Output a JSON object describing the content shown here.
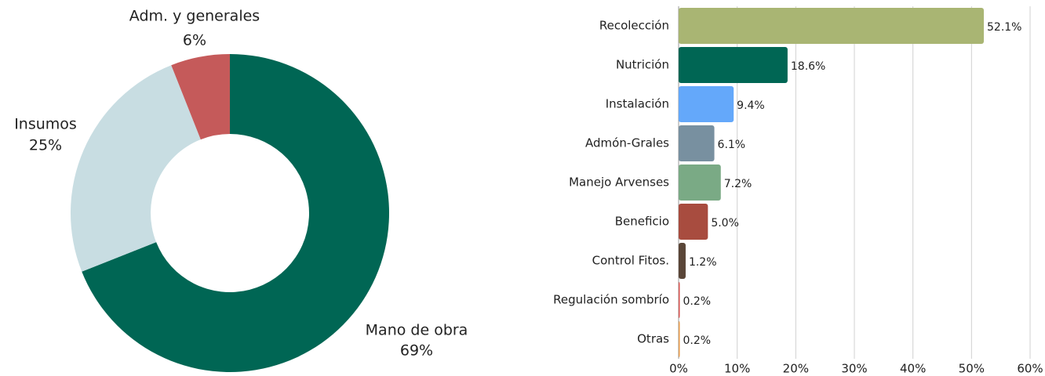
{
  "chart_data": [
    {
      "type": "donut",
      "categories": [
        "Mano de obra",
        "Insumos",
        "Adm. y generales"
      ],
      "values": [
        69,
        25,
        6
      ],
      "value_labels": [
        "69%",
        "25%",
        "6%"
      ],
      "colors": [
        "#006654",
        "#c8dde2",
        "#c55a5a"
      ]
    },
    {
      "type": "hbar",
      "categories": [
        "Recolección",
        "Nutrición",
        "Instalación",
        "Admón-Grales",
        "Manejo Arvenses",
        "Beneficio",
        "Control Fitos.",
        "Regulación sombrío",
        "Otras"
      ],
      "values": [
        52.1,
        18.6,
        9.4,
        6.1,
        7.2,
        5.0,
        1.2,
        0.2,
        0.2
      ],
      "value_labels": [
        "52.1%",
        "18.6%",
        "9.4%",
        "6.1%",
        "7.2%",
        "5.0%",
        "1.2%",
        "0.2%",
        "0.2%"
      ],
      "colors": [
        "#a9b573",
        "#006654",
        "#64a8fa",
        "#7890a0",
        "#7aaa85",
        "#a84c3f",
        "#5a4638",
        "#d9534f",
        "#e89a4a"
      ],
      "xlim": [
        0,
        60
      ],
      "xticks": [
        {
          "value": 0,
          "label": "0%"
        },
        {
          "value": 10,
          "label": "10%"
        },
        {
          "value": 20,
          "label": "20%"
        },
        {
          "value": 30,
          "label": "30%"
        },
        {
          "value": 40,
          "label": "40%"
        },
        {
          "value": 50,
          "label": "50%"
        },
        {
          "value": 60,
          "label": "60%"
        }
      ],
      "grid": true
    }
  ]
}
